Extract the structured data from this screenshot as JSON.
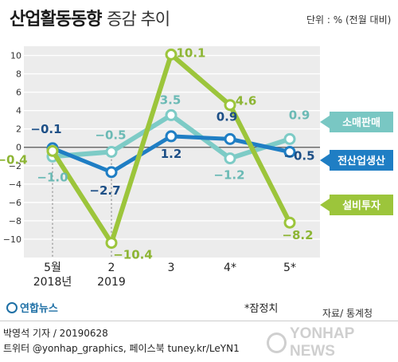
{
  "header": {
    "title_bold": "산업활동동향",
    "title_light": "증감 추이",
    "unit": "단위 : % (전월 대비)"
  },
  "footer": {
    "note": "*잠정치",
    "source": "자료/ 통계청",
    "logo": "연합뉴스",
    "credit_line1": "박영석 기자 / 20190628",
    "credit_line2": "트위터 @yonhap_graphics, 페이스북 tuney.kr/LeYN1",
    "watermark": "YONHAP NEWS"
  },
  "chart_data": {
    "type": "line",
    "categories": [
      {
        "top": "5월",
        "bottom": "2018년"
      },
      {
        "top": "2",
        "bottom": "2019"
      },
      {
        "top": "3",
        "bottom": ""
      },
      {
        "top": "4*",
        "bottom": ""
      },
      {
        "top": "5*",
        "bottom": ""
      }
    ],
    "ylim": [
      -12,
      11
    ],
    "yticks": [
      10,
      8,
      6,
      4,
      2,
      0,
      -2,
      -4,
      -6,
      -8,
      -10
    ],
    "ytick_labels": [
      "10",
      "8",
      "6",
      "4",
      "2",
      "0",
      "−2",
      "−4",
      "−6",
      "−8",
      "−10"
    ],
    "grid": true,
    "series": [
      {
        "name": "소매판매",
        "color": "#7dcbc6",
        "badge_color": "#79c7c3",
        "values": [
          -1.0,
          -0.5,
          3.5,
          -1.2,
          0.9
        ],
        "labels": [
          "−1.0",
          "−0.5",
          "3.5",
          "−1.2",
          "0.9"
        ],
        "label_color": "#6bbab5"
      },
      {
        "name": "전산업생산",
        "color": "#1f7ec4",
        "badge_color": "#1f7ec4",
        "values": [
          -0.1,
          -2.7,
          1.2,
          0.9,
          -0.5
        ],
        "labels": [
          "−0.1",
          "−2.7",
          "1.2",
          "0.9",
          "−0.5"
        ],
        "label_color": "#1d4f86"
      },
      {
        "name": "설비투자",
        "color": "#9cc53b",
        "badge_color": "#9cc53b",
        "values": [
          -0.4,
          -10.4,
          10.1,
          4.6,
          -8.2
        ],
        "labels": [
          "−0.4",
          "−10.4",
          "10.1",
          "4.6",
          "−8.2"
        ],
        "label_color": "#8db534"
      }
    ]
  }
}
